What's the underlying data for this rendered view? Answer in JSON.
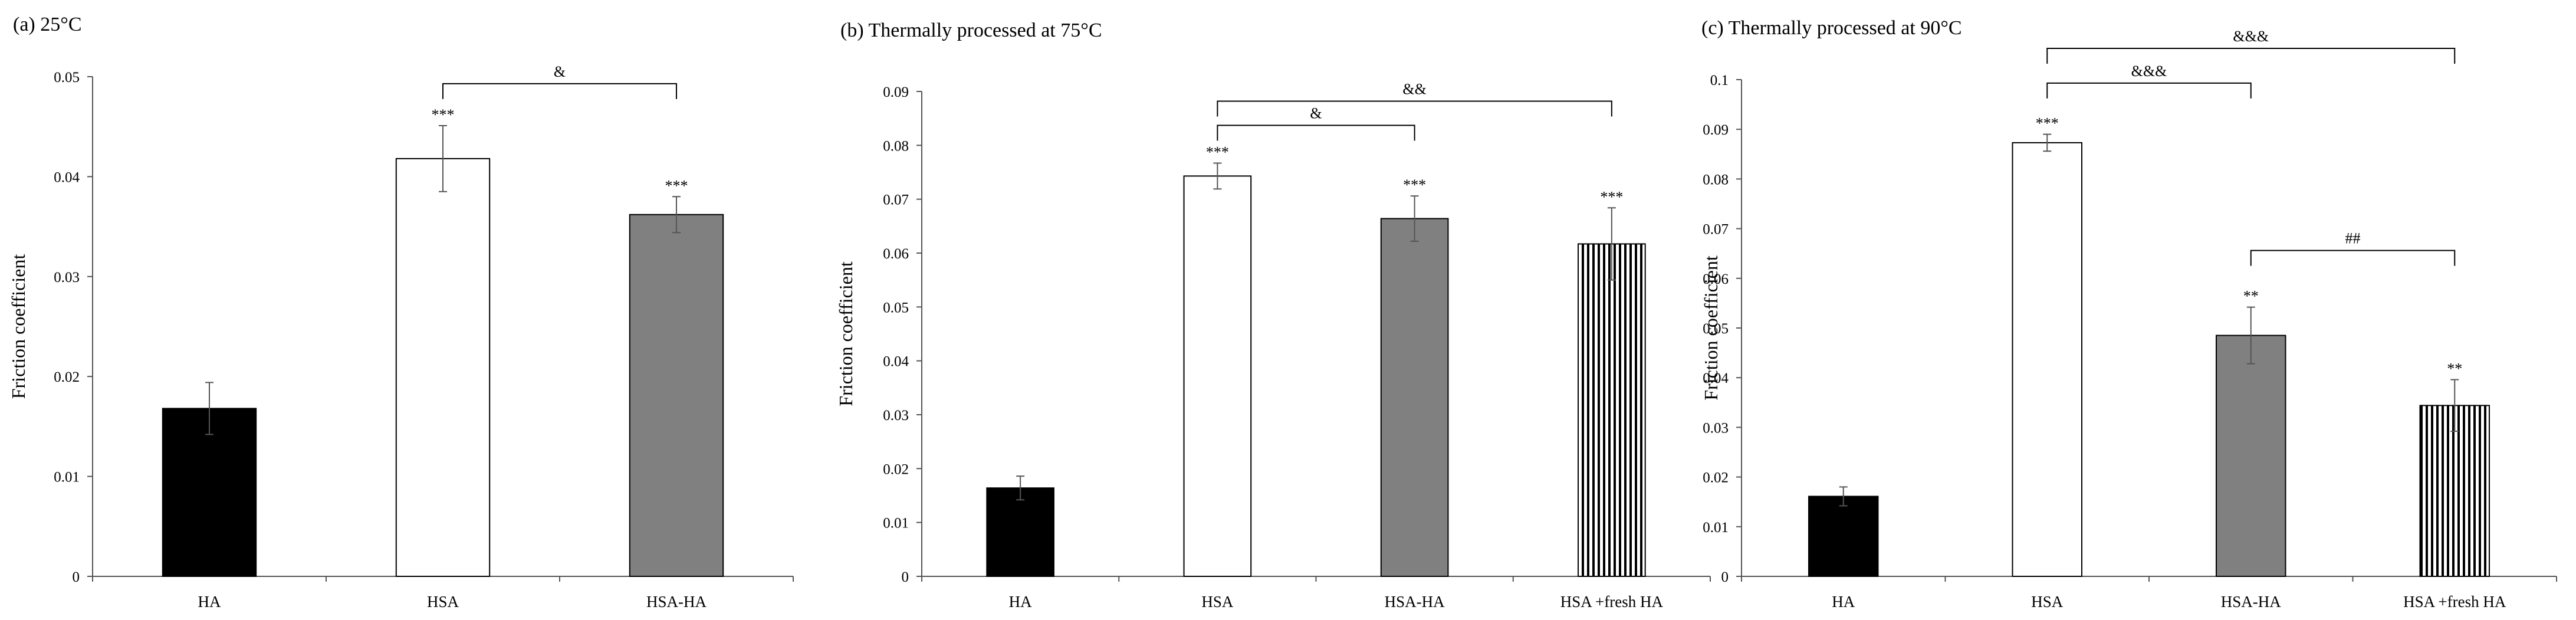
{
  "figure": {
    "colors": {
      "black": "#000000",
      "white": "#ffffff",
      "gray": "#808080",
      "axis": "#555555",
      "errorbar": "#555555"
    }
  },
  "chart_data": [
    {
      "type": "bar",
      "title": "(a) 25°C",
      "xlabel": "",
      "ylabel": "Friction coefficient",
      "ylim": [
        0,
        0.05
      ],
      "yticks": [
        "0",
        "0.01",
        "0.02",
        "0.03",
        "0.04",
        "0.05"
      ],
      "categories": [
        "HA",
        "HSA",
        "HSA-HA"
      ],
      "values": [
        0.0168,
        0.0418,
        0.0362
      ],
      "errors": [
        0.0026,
        0.0033,
        0.0018
      ],
      "fills": [
        "black",
        "white",
        "gray"
      ],
      "stars": [
        "",
        "***",
        "***"
      ],
      "brackets": [
        {
          "from": 1,
          "to": 2,
          "label": "&",
          "y": 0.0493
        }
      ]
    },
    {
      "type": "bar",
      "title": "(b) Thermally processed at 75°C",
      "xlabel": "",
      "ylabel": "Friction coefficient",
      "ylim": [
        0,
        0.09
      ],
      "yticks": [
        "0",
        "0.01",
        "0.02",
        "0.03",
        "0.04",
        "0.05",
        "0.06",
        "0.07",
        "0.08",
        "0.09"
      ],
      "categories": [
        "HA",
        "HSA",
        "HSA-HA",
        "HSA +fresh HA"
      ],
      "values": [
        0.0164,
        0.0743,
        0.0664,
        0.0617
      ],
      "errors": [
        0.0022,
        0.0024,
        0.0042,
        0.0067
      ],
      "fills": [
        "black",
        "white",
        "gray",
        "stripes"
      ],
      "stars": [
        "",
        "***",
        "***",
        "***"
      ],
      "brackets": [
        {
          "from": 1,
          "to": 3,
          "label": "&&",
          "y": 0.0882
        },
        {
          "from": 1,
          "to": 2,
          "label": "&",
          "y": 0.0837
        }
      ]
    },
    {
      "type": "bar",
      "title": "(c) Thermally processed at 90°C",
      "xlabel": "",
      "ylabel": "Friction coefficient",
      "ylim": [
        0,
        0.1
      ],
      "yticks": [
        "0",
        "0.01",
        "0.02",
        "0.03",
        "0.04",
        "0.05",
        "0.06",
        "0.07",
        "0.08",
        "0.09",
        "0.1"
      ],
      "categories": [
        "HA",
        "HSA",
        "HSA-HA",
        "HSA +fresh HA"
      ],
      "values": [
        0.0161,
        0.0873,
        0.0485,
        0.0344
      ],
      "errors": [
        0.0019,
        0.0017,
        0.0057,
        0.0052
      ],
      "fills": [
        "black",
        "white",
        "gray",
        "stripes"
      ],
      "stars": [
        "",
        "***",
        "**",
        "**"
      ],
      "brackets": [
        {
          "from": 1,
          "to": 3,
          "label": "&&&",
          "y": 0.1063
        },
        {
          "from": 1,
          "to": 2,
          "label": "&&&",
          "y": 0.0993
        },
        {
          "from": 2,
          "to": 3,
          "label": "##",
          "y": 0.0656
        }
      ]
    }
  ]
}
